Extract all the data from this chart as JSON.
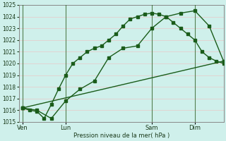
{
  "bg_color": "#cff0eb",
  "grid_color_h": "#e8c8c8",
  "grid_color_v": "#e8c8c8",
  "line_color": "#1a5c1a",
  "text_color": "#1a3a1a",
  "xlabel_text": "Pression niveau de la mer( hPa )",
  "ylim": [
    1015,
    1025
  ],
  "yticks": [
    1015,
    1016,
    1017,
    1018,
    1019,
    1020,
    1021,
    1022,
    1023,
    1024,
    1025
  ],
  "xtick_labels": [
    "Ven",
    "Lun",
    "Sam",
    "Dim"
  ],
  "xtick_positions": [
    0,
    6,
    18,
    24
  ],
  "xlim": [
    -0.5,
    28
  ],
  "num_x_minor": 28,
  "vline_positions": [
    0,
    6,
    18,
    24
  ],
  "line1_x": [
    0,
    1,
    2,
    3,
    4,
    5,
    6,
    7,
    8,
    9,
    10,
    11,
    12,
    13,
    14,
    15,
    16,
    17,
    18,
    19,
    20,
    21,
    22,
    23,
    24,
    25,
    26,
    27,
    28
  ],
  "line1_y": [
    1016.2,
    1016.0,
    1015.9,
    1015.3,
    1016.5,
    1017.8,
    1019.0,
    1020.0,
    1020.5,
    1021.0,
    1021.3,
    1021.5,
    1022.0,
    1022.5,
    1023.2,
    1023.8,
    1024.0,
    1024.2,
    1024.3,
    1024.2,
    1024.0,
    1023.5,
    1023.0,
    1022.5,
    1022.0,
    1021.0,
    1020.5,
    1020.2,
    1020.0
  ],
  "line2_x": [
    0,
    2,
    4,
    6,
    8,
    10,
    12,
    14,
    16,
    18,
    20,
    22,
    24,
    26,
    28
  ],
  "line2_y": [
    1016.2,
    1016.0,
    1015.3,
    1016.8,
    1017.8,
    1018.5,
    1020.5,
    1021.3,
    1021.5,
    1023.0,
    1024.0,
    1024.3,
    1024.5,
    1023.2,
    1020.2
  ],
  "line3_x": [
    0,
    28
  ],
  "line3_y": [
    1016.2,
    1020.2
  ],
  "marker_size": 2.5,
  "lw": 1.0,
  "figsize": [
    3.2,
    2.0
  ],
  "dpi": 100
}
